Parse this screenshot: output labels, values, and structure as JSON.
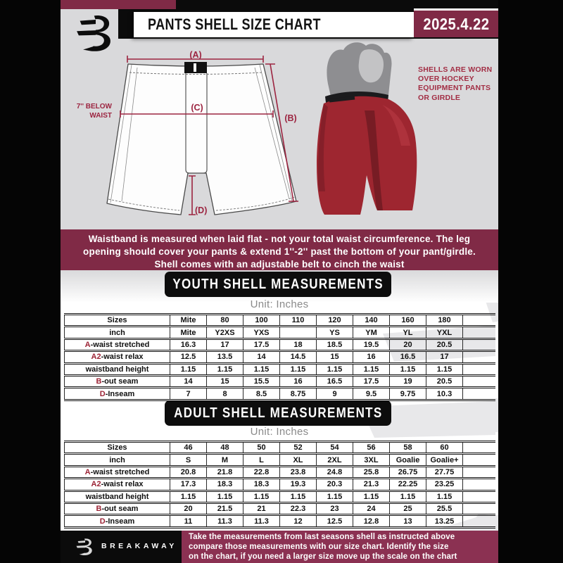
{
  "header": {
    "title": "PANTS SHELL SIZE CHART",
    "date": "2025.4.22"
  },
  "diagram": {
    "label_a": "(A)",
    "label_b": "(B)",
    "label_c": "(C)",
    "label_d": "(D)",
    "note_line1": "7'' BELOW",
    "note_line2": "WAIST"
  },
  "photo": {
    "caption": [
      "SHELLS ARE WORN",
      "OVER HOCKEY",
      "EQUIPMENT PANTS",
      "OR GIRDLE"
    ]
  },
  "banner": {
    "lines": [
      "Waistband is measured when laid flat - not your total waist circumference. The leg",
      "opening should cover your pants & extend 1''-2'' past the bottom of your pant/girdle.",
      "Shell comes with an adjustable belt to cinch the waist"
    ]
  },
  "youth": {
    "title": "YOUTH SHELL MEASUREMENTS",
    "unit": "Unit: Inches",
    "columns": [
      "Sizes",
      "Mite",
      "80",
      "100",
      "110",
      "120",
      "140",
      "160",
      "180"
    ],
    "rows": [
      {
        "prefix": "",
        "label": "inch",
        "values": [
          "Mite",
          "Y2XS",
          "YXS",
          "",
          "YS",
          "YM",
          "YL",
          "YXL"
        ]
      },
      {
        "prefix": "A",
        "label": "-waist stretched",
        "values": [
          "16.3",
          "17",
          "17.5",
          "18",
          "18.5",
          "19.5",
          "20",
          "20.5"
        ]
      },
      {
        "prefix": "A2",
        "label": "-waist relax",
        "values": [
          "12.5",
          "13.5",
          "14",
          "14.5",
          "15",
          "16",
          "16.5",
          "17"
        ]
      },
      {
        "prefix": "",
        "label": "waistband height",
        "values": [
          "1.15",
          "1.15",
          "1.15",
          "1.15",
          "1.15",
          "1.15",
          "1.15",
          "1.15"
        ]
      },
      {
        "prefix": "B",
        "label": "-out seam",
        "values": [
          "14",
          "15",
          "15.5",
          "16",
          "16.5",
          "17.5",
          "19",
          "20.5"
        ]
      },
      {
        "prefix": "D",
        "label": "-Inseam",
        "values": [
          "7",
          "8",
          "8.5",
          "8.75",
          "9",
          "9.5",
          "9.75",
          "10.3"
        ]
      }
    ]
  },
  "adult": {
    "title": "ADULT SHELL MEASUREMENTS",
    "unit": "Unit: Inches",
    "columns": [
      "Sizes",
      "46",
      "48",
      "50",
      "52",
      "54",
      "56",
      "58",
      "60"
    ],
    "rows": [
      {
        "prefix": "",
        "label": "inch",
        "values": [
          "S",
          "M",
          "L",
          "XL",
          "2XL",
          "3XL",
          "Goalie",
          "Goalie+"
        ]
      },
      {
        "prefix": "A",
        "label": "-waist stretched",
        "values": [
          "20.8",
          "21.8",
          "22.8",
          "23.8",
          "24.8",
          "25.8",
          "26.75",
          "27.75"
        ]
      },
      {
        "prefix": "A2",
        "label": "-waist relax",
        "values": [
          "17.3",
          "18.3",
          "18.3",
          "19.3",
          "20.3",
          "21.3",
          "22.25",
          "23.25"
        ]
      },
      {
        "prefix": "",
        "label": "waistband height",
        "values": [
          "1.15",
          "1.15",
          "1.15",
          "1.15",
          "1.15",
          "1.15",
          "1.15",
          "1.15"
        ]
      },
      {
        "prefix": "B",
        "label": "-out seam",
        "values": [
          "20",
          "21.5",
          "21",
          "22.3",
          "23",
          "24",
          "25",
          "25.5"
        ]
      },
      {
        "prefix": "D",
        "label": "-Inseam",
        "values": [
          "11",
          "11.3",
          "11.3",
          "12",
          "12.5",
          "12.8",
          "13",
          "13.25"
        ]
      }
    ]
  },
  "footer": {
    "brand": "BREAKAWAY",
    "lines": [
      "Take the measurements from last seasons shell as instructed above",
      "compare those measurements  with our size chart. Identify the size",
      "on the chart, if you need a larger size move up the scale on the chart"
    ]
  },
  "colors": {
    "maroon": "#802a46",
    "footer_maroon": "#8b3152",
    "diagram_red": "#9c2440",
    "table_letter_red": "#9c2335",
    "gray_background": "#d9d9db",
    "shell_red": "#9e2630"
  }
}
